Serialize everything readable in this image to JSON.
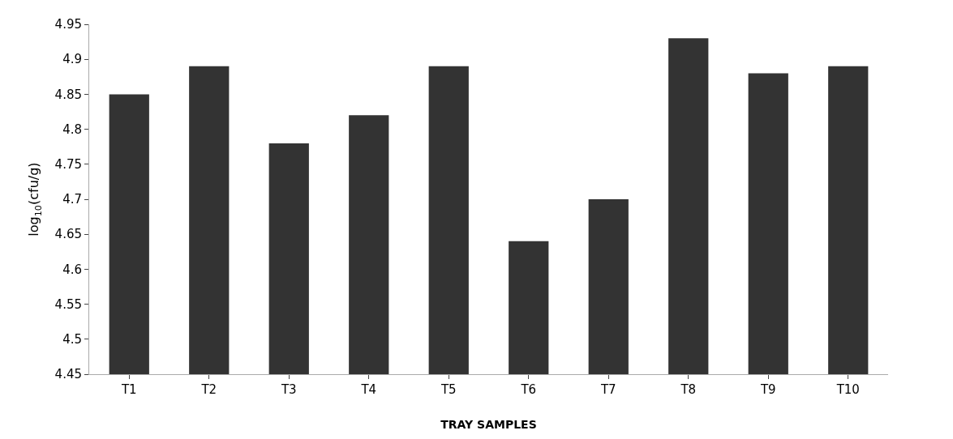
{
  "chart_data": {
    "type": "bar",
    "xlabel": "TRAY SAMPLES",
    "ylabel": "log$_{10}$(cfu/g)",
    "categories": [
      "T1",
      "T2",
      "T3",
      "T4",
      "T5",
      "T6",
      "T7",
      "T8",
      "T9",
      "T10"
    ],
    "values": [
      4.85,
      4.89,
      4.78,
      4.82,
      4.89,
      4.64,
      4.7,
      4.93,
      4.88,
      4.89
    ],
    "color": "#333333",
    "ylim": [
      4.45,
      4.95
    ],
    "yticks": [
      4.45,
      4.5,
      4.55,
      4.6,
      4.65,
      4.7,
      4.75,
      4.8,
      4.85,
      4.9,
      4.95
    ]
  }
}
